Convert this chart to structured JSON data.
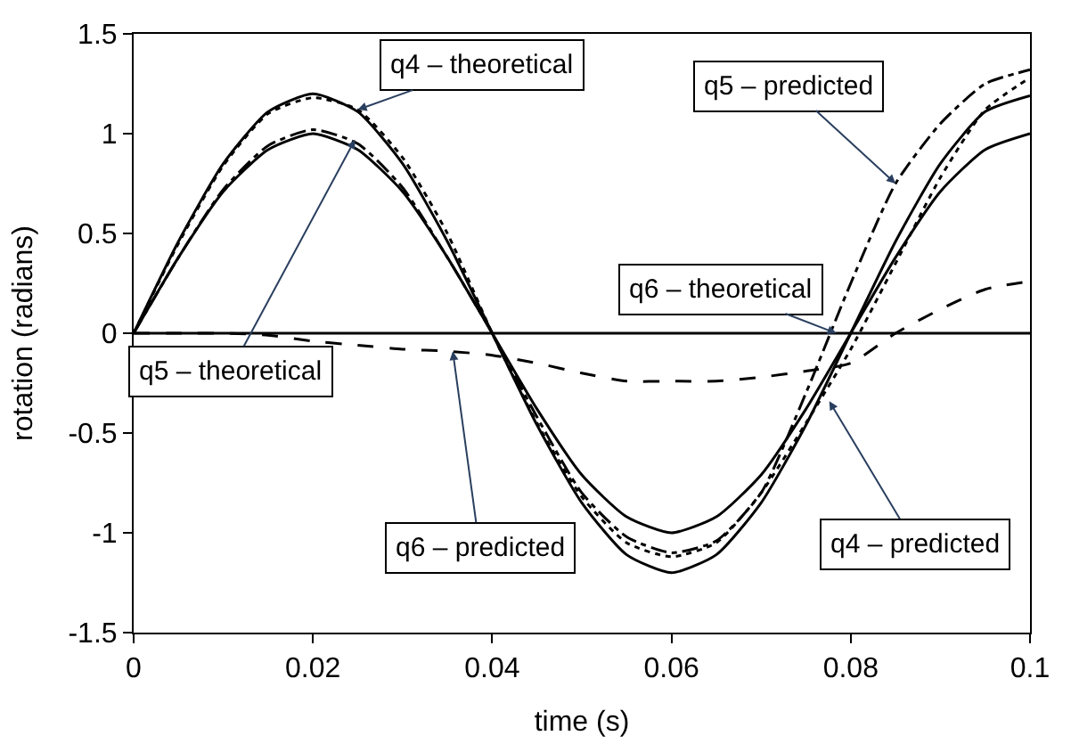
{
  "chart_data": {
    "type": "line",
    "xlabel": "time (s)",
    "ylabel": "rotation (radians)",
    "x": [
      0,
      0.005,
      0.01,
      0.015,
      0.02,
      0.025,
      0.03,
      0.035,
      0.04,
      0.045,
      0.05,
      0.055,
      0.06,
      0.065,
      0.07,
      0.075,
      0.08,
      0.085,
      0.09,
      0.095,
      0.1
    ],
    "series": [
      {
        "color": "#000000",
        "line_style": "solid",
        "values": [
          0,
          0.46,
          0.85,
          1.11,
          1.2,
          1.11,
          0.85,
          0.46,
          0,
          -0.46,
          -0.85,
          -1.11,
          -1.2,
          -1.11,
          -0.85,
          -0.46,
          0,
          0.46,
          0.85,
          1.11,
          1.19
        ]
      },
      {
        "color": "#000000",
        "line_style": "solid",
        "values": [
          0,
          0.38,
          0.71,
          0.92,
          1,
          0.92,
          0.71,
          0.38,
          0,
          -0.38,
          -0.71,
          -0.92,
          -1,
          -0.92,
          -0.71,
          -0.38,
          0,
          0.38,
          0.71,
          0.92,
          1
        ]
      },
      {
        "color": "#000000",
        "line_style": "solid",
        "values": [
          0,
          0,
          0,
          0,
          0,
          0,
          0,
          0,
          0,
          0,
          0,
          0,
          0,
          0,
          0,
          0,
          0,
          0,
          0,
          0,
          0
        ]
      },
      {
        "color": "#000000",
        "line_style": "dotted",
        "values": [
          0,
          0.45,
          0.84,
          1.1,
          1.18,
          1.12,
          0.88,
          0.5,
          0,
          -0.45,
          -0.82,
          -1.05,
          -1.12,
          -1.05,
          -0.8,
          -0.45,
          -0.08,
          0.35,
          0.78,
          1.12,
          1.28
        ]
      },
      {
        "color": "#000000",
        "line_style": "dashdot",
        "values": [
          0,
          0.38,
          0.72,
          0.94,
          1.02,
          0.95,
          0.73,
          0.38,
          0,
          -0.42,
          -0.8,
          -1.02,
          -1.1,
          -1.04,
          -0.8,
          -0.3,
          0.25,
          0.75,
          1.05,
          1.25,
          1.32
        ]
      },
      {
        "color": "#000000",
        "line_style": "dashed",
        "values": [
          0,
          0,
          0,
          -0.01,
          -0.04,
          -0.06,
          -0.08,
          -0.09,
          -0.11,
          -0.15,
          -0.2,
          -0.24,
          -0.24,
          -0.24,
          -0.22,
          -0.19,
          -0.15,
          0,
          0.12,
          0.22,
          0.26
        ]
      }
    ],
    "xlim": [
      0,
      0.1
    ],
    "xticks": [
      0,
      0.02,
      0.04,
      0.06,
      0.08,
      0.1
    ],
    "ylim": [
      -1.5,
      1.5
    ],
    "yticks": [
      -1.5,
      -1,
      -0.5,
      0,
      0.5,
      1,
      1.5
    ],
    "marker": "none",
    "annotations": [
      {
        "text": "q4 – theoretical",
        "x": 0.025,
        "y": 1.12
      },
      {
        "text": "q5 – predicted",
        "x": 0.085,
        "y": 0.75
      },
      {
        "text": "q6 – theoretical",
        "x": 0.0784,
        "y": 0
      },
      {
        "text": "q5 – theoretical",
        "x": 0.0247,
        "y": 0.97
      },
      {
        "text": "q6 – predicted",
        "x": 0.0356,
        "y": -0.09
      },
      {
        "text": "q4 – predicted",
        "x": 0.0776,
        "y": -0.34
      }
    ]
  }
}
